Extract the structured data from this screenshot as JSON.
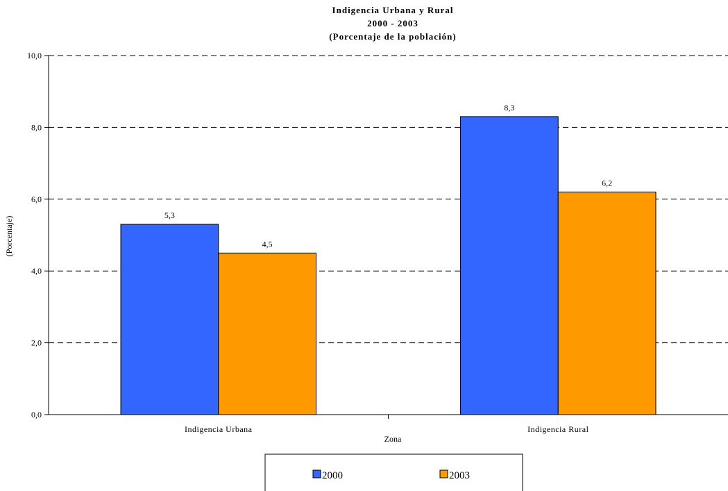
{
  "chart_data": {
    "type": "bar",
    "title": [
      "Indigencia Urbana y Rural",
      "2000 - 2003",
      "(Porcentaje de la población)"
    ],
    "xlabel": "Zona",
    "ylabel": "(Porcentaje)",
    "categories": [
      "Indigencia Urbana",
      "Indigencia Rural"
    ],
    "series": [
      {
        "name": "2000",
        "values": [
          5.3,
          8.3
        ],
        "labels": [
          "5,3",
          "8,3"
        ],
        "color": "#3366FF"
      },
      {
        "name": "2003",
        "values": [
          4.5,
          6.2
        ],
        "labels": [
          "4,5",
          "6,2"
        ],
        "color": "#FF9900"
      }
    ],
    "ylim": [
      0,
      10
    ],
    "yticks": [
      0,
      2,
      4,
      6,
      8,
      10
    ],
    "ytick_labels": [
      "0,0",
      "2,0",
      "4,0",
      "6,0",
      "8,0",
      "10,0"
    ],
    "grid": true,
    "legend_position": "bottom"
  }
}
